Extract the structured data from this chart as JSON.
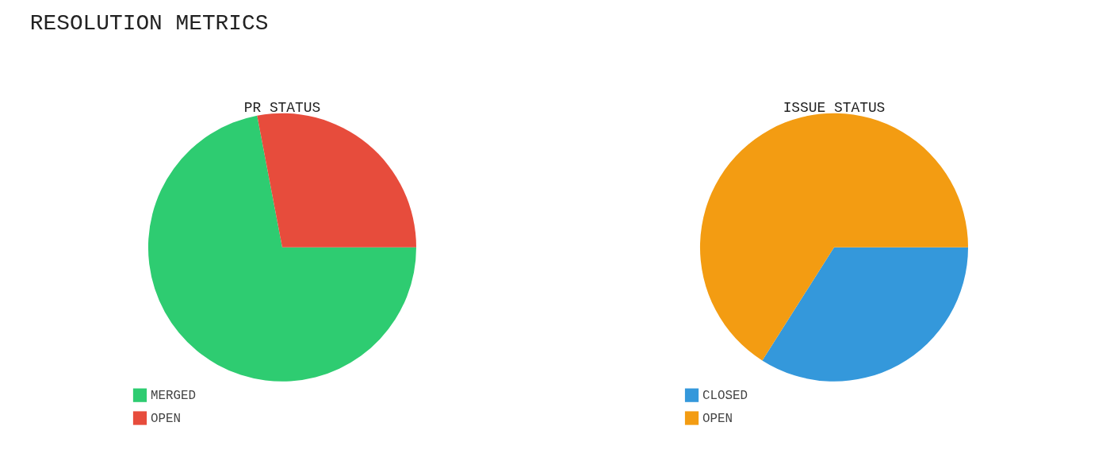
{
  "chart_data": [
    {
      "type": "pie",
      "title": "PR STATUS",
      "annotations": [
        "RESOLUTION METRICS"
      ],
      "categories": [
        "MERGED",
        "OPEN"
      ],
      "values": [
        72,
        28
      ],
      "colors": [
        "#2ecc71",
        "#e74c3c"
      ],
      "legend": "bottom left"
    },
    {
      "type": "pie",
      "title": "ISSUE STATUS",
      "categories": [
        "CLOSED",
        "OPEN"
      ],
      "values": [
        34,
        66
      ],
      "colors": [
        "#3498db",
        "#f39c12"
      ],
      "legend": "bottom left"
    }
  ]
}
